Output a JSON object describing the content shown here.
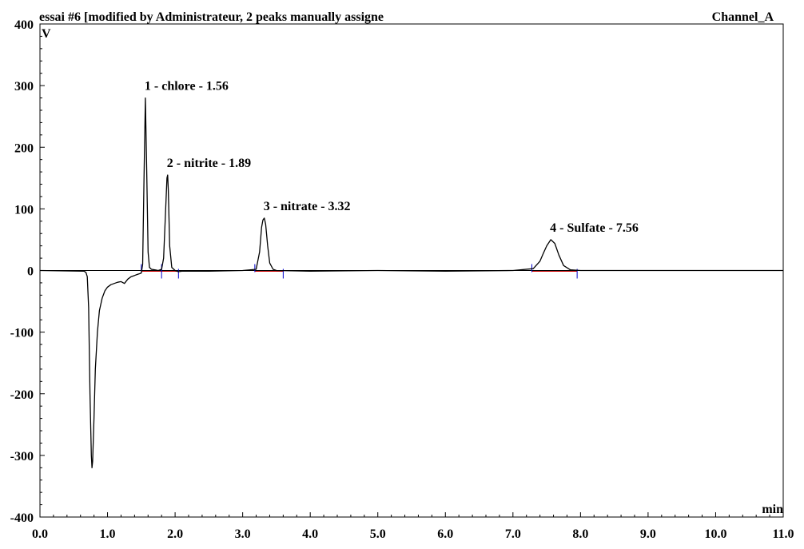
{
  "title": "essai #6 [modified by Administrateur, 2 peaks manually assigne",
  "channel": "Channel_A",
  "colors": {
    "trace": "#000000",
    "baseline": "#cc0000",
    "marker": "#0000cc",
    "text": "#000000"
  },
  "chart_data": {
    "type": "line",
    "xlabel": "min",
    "ylabel": "V",
    "xlim": [
      0,
      11
    ],
    "ylim": [
      -400,
      400
    ],
    "x_ticks": [
      "0.0",
      "1.0",
      "2.0",
      "3.0",
      "4.0",
      "5.0",
      "6.0",
      "7.0",
      "8.0",
      "9.0",
      "10.0",
      "11.0"
    ],
    "y_ticks": [
      "400",
      "300",
      "200",
      "100",
      "0",
      "-100",
      "-200",
      "-300",
      "-400"
    ],
    "series": [
      {
        "x": [
          0,
          0.65,
          0.68,
          0.7,
          0.72,
          0.74,
          0.76,
          0.77,
          0.78,
          0.8,
          0.82,
          0.85,
          0.88,
          0.92,
          0.96,
          1.0,
          1.05,
          1.1,
          1.15,
          1.2,
          1.25,
          1.3,
          1.35,
          1.4,
          1.45,
          1.48,
          1.5,
          1.52,
          1.54,
          1.56,
          1.58,
          1.6,
          1.62,
          1.65,
          1.7,
          1.75,
          1.8,
          1.83,
          1.86,
          1.88,
          1.89,
          1.9,
          1.92,
          1.95,
          2.0,
          2.05,
          2.1,
          2.5,
          3.0,
          3.2,
          3.25,
          3.28,
          3.3,
          3.32,
          3.34,
          3.37,
          3.4,
          3.45,
          3.5,
          4.0,
          5.0,
          6.0,
          7.0,
          7.3,
          7.4,
          7.45,
          7.5,
          7.56,
          7.62,
          7.68,
          7.75,
          7.85,
          8.0,
          9.0,
          10.0,
          11.0
        ],
        "y": [
          0,
          -1,
          -3,
          -10,
          -60,
          -200,
          -300,
          -320,
          -310,
          -240,
          -160,
          -100,
          -65,
          -45,
          -33,
          -27,
          -23,
          -21,
          -19,
          -18,
          -21,
          -14,
          -10,
          -8,
          -6,
          -5,
          -4,
          10,
          150,
          280,
          160,
          30,
          5,
          2,
          1,
          0,
          2,
          20,
          100,
          150,
          155,
          130,
          40,
          5,
          0,
          -2,
          -1,
          -1,
          0,
          2,
          30,
          70,
          82,
          85,
          75,
          40,
          12,
          2,
          0,
          -1,
          0,
          -1,
          0,
          3,
          15,
          28,
          40,
          50,
          44,
          25,
          8,
          1,
          0,
          0,
          0,
          0
        ]
      }
    ],
    "peaks": [
      {
        "label": "1 - chlore - 1.56",
        "x": 1.56,
        "y": 280,
        "start": 1.5,
        "end": 1.8
      },
      {
        "label": "2 - nitrite - 1.89",
        "x": 1.89,
        "y": 155,
        "start": 1.8,
        "end": 2.05
      },
      {
        "label": "3 - nitrate - 3.32",
        "x": 3.32,
        "y": 85,
        "start": 3.18,
        "end": 3.6
      },
      {
        "label": "4 - Sulfate - 7.56",
        "x": 7.56,
        "y": 50,
        "start": 7.28,
        "end": 7.95
      }
    ]
  }
}
